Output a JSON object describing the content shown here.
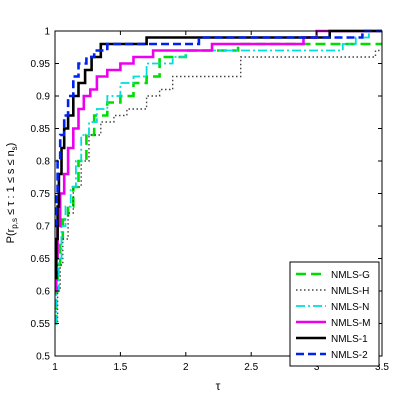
{
  "chart_data": {
    "type": "line",
    "xlabel": "τ",
    "ylabel": "P(r_{p,s} ≤ τ : 1 ≤ s ≤ n_s)",
    "xlim": [
      1,
      3.5
    ],
    "ylim": [
      0.5,
      1
    ],
    "xticks": [
      "1",
      "1.5",
      "2",
      "2.5",
      "3",
      "3.5"
    ],
    "yticks": [
      "0.5",
      "0.55",
      "0.6",
      "0.65",
      "0.7",
      "0.75",
      "0.8",
      "0.85",
      "0.9",
      "0.95",
      "1"
    ],
    "grid": false,
    "legend_position": "bottom-right",
    "series": [
      {
        "name": "NMLS-G",
        "color": "#00dd00",
        "dash": "10,5",
        "width": 2.6,
        "points": [
          [
            1.0,
            0.55
          ],
          [
            1.01,
            0.6
          ],
          [
            1.02,
            0.64
          ],
          [
            1.04,
            0.68
          ],
          [
            1.06,
            0.71
          ],
          [
            1.1,
            0.73
          ],
          [
            1.14,
            0.76
          ],
          [
            1.18,
            0.8
          ],
          [
            1.24,
            0.84
          ],
          [
            1.3,
            0.87
          ],
          [
            1.4,
            0.89
          ],
          [
            1.5,
            0.9
          ],
          [
            1.6,
            0.92
          ],
          [
            1.7,
            0.93
          ],
          [
            1.8,
            0.96
          ],
          [
            2.0,
            0.97
          ],
          [
            2.4,
            0.98
          ],
          [
            3.5,
            0.98
          ]
        ]
      },
      {
        "name": "NMLS-H",
        "color": "#444444",
        "dash": "1.5,2.5",
        "width": 1.4,
        "points": [
          [
            1.0,
            0.55
          ],
          [
            1.02,
            0.6
          ],
          [
            1.04,
            0.64
          ],
          [
            1.06,
            0.68
          ],
          [
            1.1,
            0.72
          ],
          [
            1.14,
            0.76
          ],
          [
            1.2,
            0.8
          ],
          [
            1.26,
            0.84
          ],
          [
            1.35,
            0.86
          ],
          [
            1.45,
            0.87
          ],
          [
            1.55,
            0.88
          ],
          [
            1.7,
            0.9
          ],
          [
            1.8,
            0.91
          ],
          [
            1.9,
            0.93
          ],
          [
            2.0,
            0.93
          ],
          [
            2.4,
            0.93
          ],
          [
            2.42,
            0.96
          ],
          [
            2.9,
            0.96
          ],
          [
            3.2,
            0.96
          ],
          [
            3.4,
            0.96
          ],
          [
            3.45,
            0.97
          ],
          [
            3.5,
            0.97
          ]
        ]
      },
      {
        "name": "NMLS-N",
        "color": "#00dddd",
        "dash": "9,3,2,3",
        "width": 1.8,
        "points": [
          [
            1.0,
            0.55
          ],
          [
            1.01,
            0.6
          ],
          [
            1.03,
            0.65
          ],
          [
            1.05,
            0.7
          ],
          [
            1.08,
            0.73
          ],
          [
            1.12,
            0.76
          ],
          [
            1.16,
            0.8
          ],
          [
            1.2,
            0.84
          ],
          [
            1.26,
            0.86
          ],
          [
            1.32,
            0.88
          ],
          [
            1.4,
            0.9
          ],
          [
            1.5,
            0.92
          ],
          [
            1.6,
            0.93
          ],
          [
            1.7,
            0.95
          ],
          [
            1.9,
            0.96
          ],
          [
            2.0,
            0.97
          ],
          [
            2.4,
            0.97
          ],
          [
            2.9,
            0.97
          ],
          [
            3.2,
            0.98
          ],
          [
            3.3,
            0.99
          ],
          [
            3.4,
            1.0
          ],
          [
            3.5,
            1.0
          ]
        ]
      },
      {
        "name": "NMLS-M",
        "color": "#ee00ee",
        "dash": "",
        "width": 2.6,
        "points": [
          [
            1.0,
            0.6
          ],
          [
            1.01,
            0.65
          ],
          [
            1.02,
            0.7
          ],
          [
            1.04,
            0.75
          ],
          [
            1.07,
            0.78
          ],
          [
            1.1,
            0.82
          ],
          [
            1.14,
            0.85
          ],
          [
            1.18,
            0.88
          ],
          [
            1.22,
            0.9
          ],
          [
            1.27,
            0.91
          ],
          [
            1.32,
            0.93
          ],
          [
            1.4,
            0.94
          ],
          [
            1.5,
            0.95
          ],
          [
            1.6,
            0.96
          ],
          [
            1.75,
            0.97
          ],
          [
            2.0,
            0.97
          ],
          [
            2.2,
            0.98
          ],
          [
            2.8,
            0.98
          ],
          [
            2.9,
            0.99
          ],
          [
            3.0,
            1.0
          ],
          [
            3.5,
            1.0
          ]
        ]
      },
      {
        "name": "NMLS-1",
        "color": "#000000",
        "dash": "",
        "width": 2.6,
        "points": [
          [
            1.0,
            0.62
          ],
          [
            1.01,
            0.68
          ],
          [
            1.02,
            0.73
          ],
          [
            1.03,
            0.78
          ],
          [
            1.05,
            0.82
          ],
          [
            1.07,
            0.85
          ],
          [
            1.1,
            0.87
          ],
          [
            1.14,
            0.9
          ],
          [
            1.18,
            0.92
          ],
          [
            1.23,
            0.94
          ],
          [
            1.28,
            0.96
          ],
          [
            1.35,
            0.98
          ],
          [
            1.45,
            0.98
          ],
          [
            1.68,
            0.98
          ],
          [
            1.7,
            0.99
          ],
          [
            2.0,
            0.99
          ],
          [
            3.05,
            0.99
          ],
          [
            3.1,
            1.0
          ],
          [
            3.5,
            1.0
          ]
        ]
      },
      {
        "name": "NMLS-2",
        "color": "#0022ee",
        "dash": "8,4",
        "width": 2.6,
        "points": [
          [
            1.0,
            0.7
          ],
          [
            1.01,
            0.75
          ],
          [
            1.02,
            0.8
          ],
          [
            1.04,
            0.84
          ],
          [
            1.07,
            0.87
          ],
          [
            1.1,
            0.9
          ],
          [
            1.14,
            0.93
          ],
          [
            1.18,
            0.95
          ],
          [
            1.24,
            0.96
          ],
          [
            1.3,
            0.97
          ],
          [
            1.4,
            0.98
          ],
          [
            1.6,
            0.98
          ],
          [
            1.8,
            0.98
          ],
          [
            2.1,
            0.99
          ],
          [
            3.2,
            0.99
          ],
          [
            3.35,
            1.0
          ],
          [
            3.5,
            1.0
          ]
        ]
      }
    ]
  }
}
